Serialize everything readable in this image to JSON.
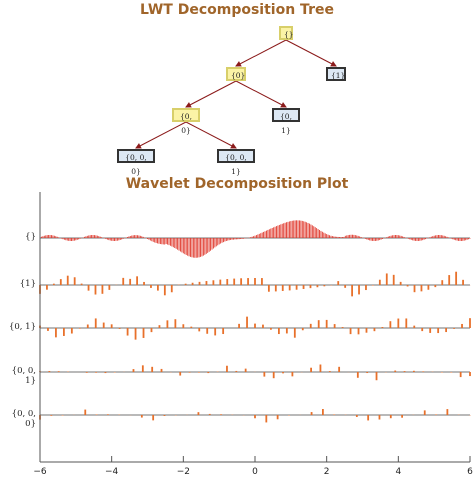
{
  "tree": {
    "title": "LWT Decomposition Tree",
    "nodes": [
      {
        "id": "root",
        "label": "{}",
        "type": "inner"
      },
      {
        "id": "n0",
        "label": "{0}",
        "type": "inner"
      },
      {
        "id": "n1",
        "label": "{1}",
        "type": "leaf"
      },
      {
        "id": "n00",
        "label": "{0, 0}",
        "type": "inner"
      },
      {
        "id": "n01",
        "label": "{0, 1}",
        "type": "leaf"
      },
      {
        "id": "n000",
        "label": "{0, 0, 0}",
        "type": "leaf"
      },
      {
        "id": "n001",
        "label": "{0, 0, 1}",
        "type": "leaf"
      }
    ],
    "edges": [
      [
        "root",
        "n0"
      ],
      [
        "root",
        "n1"
      ],
      [
        "n0",
        "n00"
      ],
      [
        "n0",
        "n01"
      ],
      [
        "n00",
        "n000"
      ],
      [
        "n00",
        "n001"
      ]
    ]
  },
  "plot": {
    "title": "Wavelet Decomposition Plot",
    "rows": [
      {
        "label": "{}",
        "color": "#e03a2e",
        "style": "dense"
      },
      {
        "label": "{1}",
        "color": "#e8702a",
        "style": "sparse"
      },
      {
        "label": "{0, 1}",
        "color": "#e8702a",
        "style": "sparse"
      },
      {
        "label": "{0, 0, 1}",
        "color": "#e8702a",
        "style": "sparse"
      },
      {
        "label": "{0, 0, 0}",
        "color": "#e8702a",
        "style": "sparse"
      }
    ],
    "xlim": [
      -6,
      6
    ],
    "xticks": [
      -6,
      -4,
      -2,
      0,
      2,
      4,
      6
    ],
    "colors": {
      "edge": "#8b1a1a",
      "axis": "#555555"
    }
  }
}
